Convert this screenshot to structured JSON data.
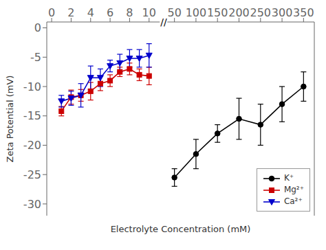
{
  "chart_data": [
    {
      "type": "line",
      "ylabel": "Zeta Potential (mV)",
      "xlabel": "Electrolyte Concentration (mM)",
      "xlim": [
        -0.5,
        11.5
      ],
      "xticks": [
        0,
        2,
        4,
        6,
        8,
        10
      ],
      "ylim": [
        -32,
        1
      ],
      "yticks": [
        0,
        -5,
        -10,
        -15,
        -20,
        -25,
        -30
      ],
      "series": [
        {
          "name": "Mg²⁺",
          "color": "#cc0000",
          "marker": "square",
          "x": [
            1,
            2,
            3,
            4,
            5,
            6,
            7,
            8,
            9,
            10
          ],
          "values": [
            -14.2,
            -11.8,
            -11.5,
            -10.8,
            -9.5,
            -9.0,
            -7.5,
            -7.0,
            -8.0,
            -8.2
          ],
          "errors": [
            0.8,
            1.2,
            1.0,
            1.5,
            1.2,
            1.0,
            0.8,
            1.0,
            1.0,
            1.5
          ]
        },
        {
          "name": "Ca²⁺",
          "color": "#0000cc",
          "marker": "triangle_down",
          "x": [
            1,
            2,
            3,
            4,
            5,
            6,
            7,
            8,
            9,
            10
          ],
          "values": [
            -12.5,
            -12.0,
            -11.5,
            -8.5,
            -8.5,
            -6.5,
            -6.0,
            -5.2,
            -5.2,
            -4.7
          ],
          "errors": [
            1.0,
            1.2,
            2.0,
            2.0,
            1.5,
            1.0,
            1.5,
            1.5,
            1.5,
            2.0
          ]
        }
      ]
    },
    {
      "type": "line",
      "xlim": [
        25,
        375
      ],
      "xticks": [
        50,
        100,
        150,
        200,
        250,
        300,
        350
      ],
      "ylim": [
        -32,
        1
      ],
      "tick_labels": "x",
      "legend": "lower right",
      "annotations": [
        "//"
      ],
      "series": [
        {
          "name": "K⁺",
          "color": "#000000",
          "marker": "circle",
          "x": [
            50,
            100,
            150,
            200,
            250,
            300,
            350
          ],
          "values": [
            -25.5,
            -21.5,
            -18.0,
            -15.5,
            -16.5,
            -13.0,
            -10.0
          ],
          "errors": [
            1.5,
            2.5,
            1.5,
            3.5,
            3.5,
            3.0,
            2.5
          ]
        }
      ]
    }
  ]
}
